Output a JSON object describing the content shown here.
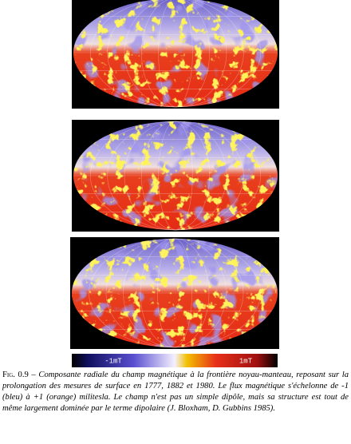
{
  "figure": {
    "colorbar": {
      "min_label": "-1mT",
      "max_label": "1mT"
    },
    "caption": {
      "label": "Fig. 0.9 –",
      "text": "Composante radiale du champ magnétique à la frontière noyau-manteau, reposant sur la prolongation des mesures de surface en 1777, 1882 et 1980. Le flux magnétique s'échelonne de -1 (bleu) à +1 (orange) militesla. Le champ n'est pas un simple dipôle, mais sa structure est tout de même largement dominée par le terme dipolaire (J. Bloxham, D. Gubbins 1985)."
    }
  }
}
